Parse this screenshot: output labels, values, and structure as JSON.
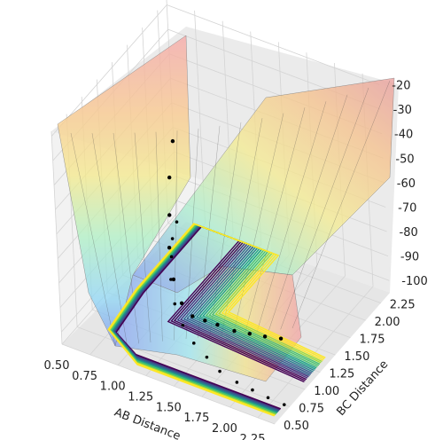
{
  "chart_data": {
    "type": "surface3d",
    "title": "",
    "xlabel": "AB Distance",
    "ylabel": "BC Distance",
    "zlabel": "",
    "x_ticks": [
      "0.50",
      "0.75",
      "1.00",
      "1.25",
      "1.50",
      "1.75",
      "2.00",
      "2.25"
    ],
    "y_ticks": [
      "0.50",
      "0.75",
      "1.00",
      "1.25",
      "1.50",
      "1.75",
      "2.00",
      "2.25"
    ],
    "z_ticks": [
      "-20",
      "-30",
      "-40",
      "-50",
      "-60",
      "-70",
      "-80",
      "-90",
      "-100"
    ],
    "xlim": [
      0.5,
      2.4
    ],
    "ylim": [
      0.5,
      2.4
    ],
    "zlim": [
      -105,
      -18
    ],
    "surface": {
      "colormap": "jet",
      "alpha": 0.4,
      "description_series": "potential energy surface"
    },
    "contours": {
      "colormap": "viridis",
      "levels": 20
    },
    "trajectory": {
      "marker": "black dots",
      "x": [
        0.55,
        0.62,
        0.72,
        0.85,
        1.02,
        1.2,
        1.38,
        1.55,
        1.72,
        1.9,
        2.05,
        2.2,
        2.35
      ],
      "y": [
        2.3,
        2.1,
        1.9,
        1.65,
        1.4,
        1.2,
        1.05,
        0.95,
        0.85,
        0.8,
        0.78,
        0.76,
        0.75
      ],
      "z": [
        -72,
        -80,
        -88,
        -92,
        -95,
        -96,
        -94,
        -90,
        -86,
        -84,
        -82,
        -80,
        -78
      ]
    },
    "colors": {
      "surface_edge": "#444444",
      "trajectory": "#000000"
    }
  }
}
